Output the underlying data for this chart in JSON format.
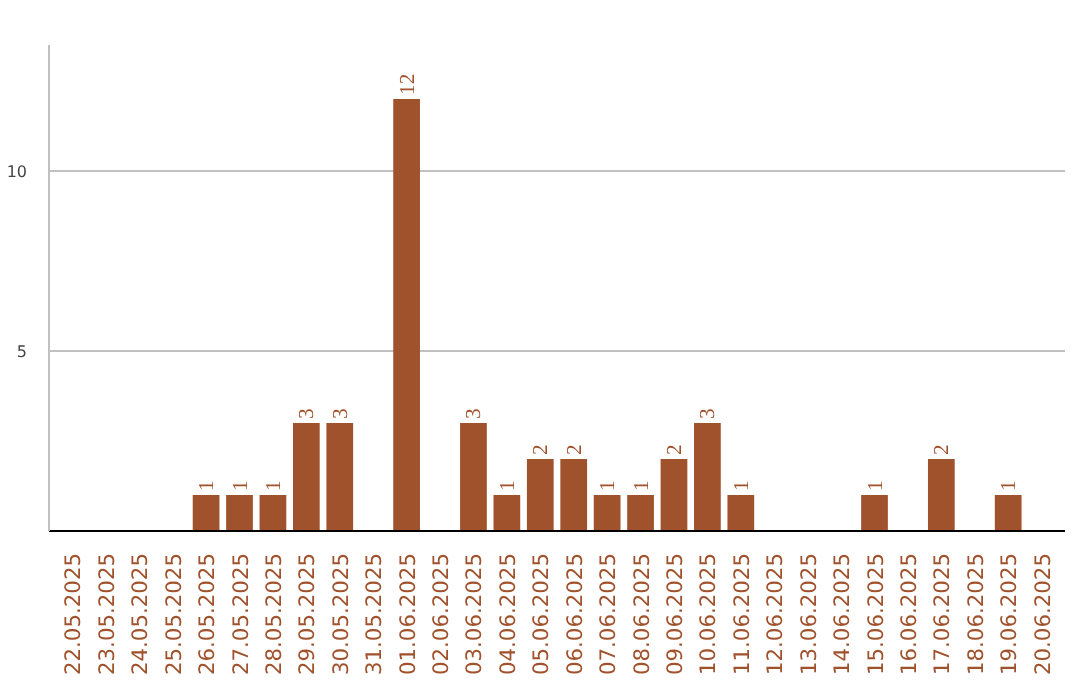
{
  "chart_data": {
    "type": "bar",
    "categories": [
      "22.05.2025",
      "23.05.2025",
      "24.05.2025",
      "25.05.2025",
      "26.05.2025",
      "27.05.2025",
      "28.05.2025",
      "29.05.2025",
      "30.05.2025",
      "31.05.2025",
      "01.06.2025",
      "02.06.2025",
      "03.06.2025",
      "04.06.2025",
      "05.06.2025",
      "06.06.2025",
      "07.06.2025",
      "08.06.2025",
      "09.06.2025",
      "10.06.2025",
      "11.06.2025",
      "12.06.2025",
      "13.06.2025",
      "14.06.2025",
      "15.06.2025",
      "16.06.2025",
      "17.06.2025",
      "18.06.2025",
      "19.06.2025",
      "20.06.2025"
    ],
    "values": [
      0,
      0,
      0,
      0,
      1,
      1,
      1,
      3,
      3,
      0,
      12,
      0,
      3,
      1,
      2,
      2,
      1,
      1,
      2,
      3,
      1,
      0,
      0,
      0,
      1,
      0,
      2,
      0,
      1,
      0
    ],
    "value_labels": [
      null,
      null,
      null,
      null,
      "1",
      "1",
      "1",
      "3",
      "3",
      null,
      "12",
      null,
      "3",
      "1",
      "2",
      "2",
      "1",
      "1",
      "2",
      "3",
      "1",
      null,
      null,
      null,
      "1",
      null,
      "2",
      null,
      "1",
      null
    ],
    "color": "#a0522d",
    "ylim": [
      0,
      13.5
    ],
    "yticks": [
      5,
      10
    ],
    "grid": "y"
  }
}
